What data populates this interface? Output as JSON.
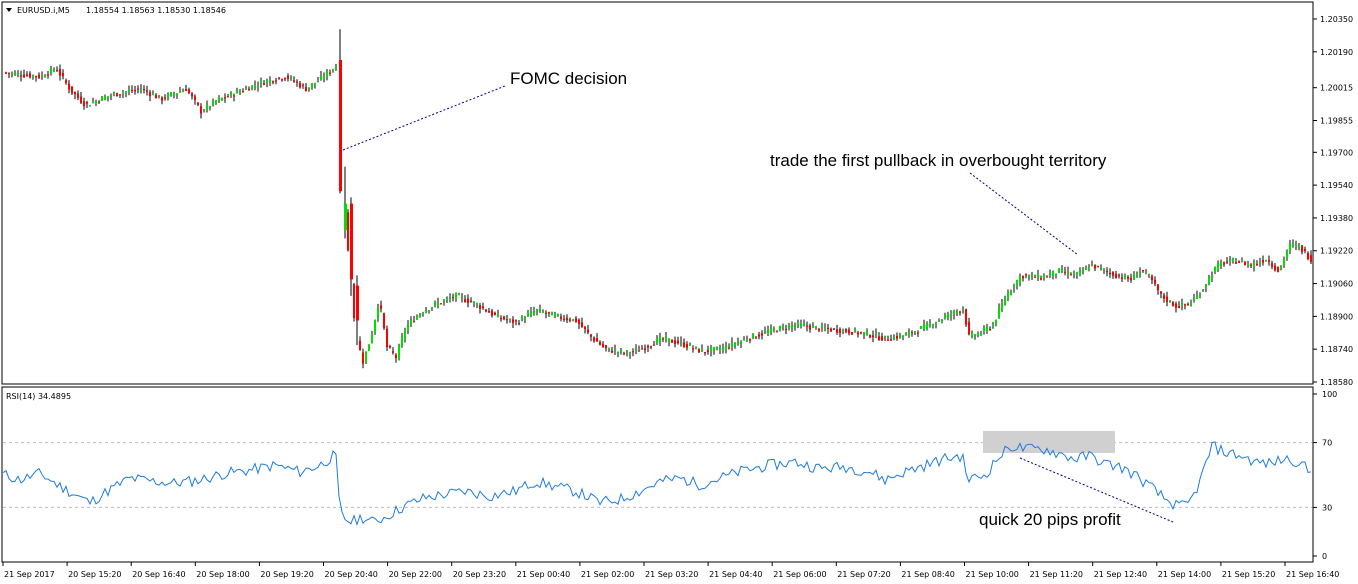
{
  "chart_data": [
    {
      "type": "candlestick",
      "header": {
        "symbol": "EURUSD.i,M5",
        "ohlc": "1.18554 1.18563 1.18530 1.18546"
      },
      "y_ticks": [
        "1.20350",
        "1.20190",
        "1.20015",
        "1.19855",
        "1.19700",
        "1.19540",
        "1.19380",
        "1.19220",
        "1.19060",
        "1.18900",
        "1.18740",
        "1.18580"
      ],
      "ylim": [
        1.1858,
        1.2035
      ],
      "colors": {
        "up": "#00e000",
        "down": "#ff0000",
        "wick": "#000000"
      },
      "price_path": [
        [
          0,
          1.2009
        ],
        [
          40,
          1.2007
        ],
        [
          55,
          1.2011
        ],
        [
          70,
          1.2
        ],
        [
          85,
          1.1993
        ],
        [
          110,
          1.1998
        ],
        [
          140,
          1.2001
        ],
        [
          160,
          1.1996
        ],
        [
          185,
          1.2001
        ],
        [
          200,
          1.199
        ],
        [
          215,
          1.1995
        ],
        [
          240,
          1.2
        ],
        [
          260,
          1.2004
        ],
        [
          285,
          1.2007
        ],
        [
          305,
          1.2001
        ],
        [
          320,
          1.2006
        ],
        [
          337,
          1.2013
        ],
        [
          338,
          1.1968
        ],
        [
          342,
          1.195
        ],
        [
          346,
          1.193
        ],
        [
          350,
          1.1905
        ],
        [
          355,
          1.188
        ],
        [
          362,
          1.1868
        ],
        [
          370,
          1.188
        ],
        [
          378,
          1.1898
        ],
        [
          386,
          1.1875
        ],
        [
          395,
          1.187
        ],
        [
          405,
          1.1885
        ],
        [
          420,
          1.1892
        ],
        [
          435,
          1.1896
        ],
        [
          455,
          1.19
        ],
        [
          475,
          1.1896
        ],
        [
          495,
          1.189
        ],
        [
          515,
          1.1887
        ],
        [
          535,
          1.1893
        ],
        [
          555,
          1.189
        ],
        [
          575,
          1.1888
        ],
        [
          590,
          1.188
        ],
        [
          605,
          1.1874
        ],
        [
          625,
          1.1872
        ],
        [
          640,
          1.1874
        ],
        [
          660,
          1.1879
        ],
        [
          680,
          1.1877
        ],
        [
          700,
          1.1873
        ],
        [
          720,
          1.1874
        ],
        [
          745,
          1.1879
        ],
        [
          770,
          1.1883
        ],
        [
          795,
          1.1886
        ],
        [
          820,
          1.1884
        ],
        [
          845,
          1.1883
        ],
        [
          870,
          1.1881
        ],
        [
          885,
          1.1879
        ],
        [
          905,
          1.1881
        ],
        [
          925,
          1.1885
        ],
        [
          945,
          1.189
        ],
        [
          962,
          1.1894
        ],
        [
          968,
          1.188
        ],
        [
          980,
          1.1882
        ],
        [
          992,
          1.1886
        ],
        [
          1005,
          1.19
        ],
        [
          1020,
          1.191
        ],
        [
          1040,
          1.1909
        ],
        [
          1058,
          1.1912
        ],
        [
          1075,
          1.191
        ],
        [
          1090,
          1.1915
        ],
        [
          1100,
          1.1913
        ],
        [
          1115,
          1.191
        ],
        [
          1130,
          1.1908
        ],
        [
          1140,
          1.1913
        ],
        [
          1150,
          1.1908
        ],
        [
          1160,
          1.19
        ],
        [
          1175,
          1.1895
        ],
        [
          1188,
          1.1896
        ],
        [
          1200,
          1.1902
        ],
        [
          1212,
          1.1912
        ],
        [
          1220,
          1.1916
        ],
        [
          1235,
          1.1917
        ],
        [
          1250,
          1.1915
        ],
        [
          1265,
          1.1918
        ],
        [
          1278,
          1.1912
        ],
        [
          1288,
          1.1925
        ],
        [
          1298,
          1.1924
        ],
        [
          1312,
          1.1917
        ]
      ],
      "special_candles": [
        {
          "x": 339,
          "open": 1.2015,
          "close": 1.1951,
          "high": 1.203,
          "low": 1.195
        },
        {
          "x": 344,
          "open": 1.1932,
          "close": 1.1945,
          "high": 1.1963,
          "low": 1.1928
        },
        {
          "x": 350,
          "open": 1.1945,
          "close": 1.1908,
          "high": 1.1948,
          "low": 1.19
        },
        {
          "x": 356,
          "open": 1.1905,
          "close": 1.1888,
          "high": 1.191,
          "low": 1.1876
        }
      ],
      "annotations": [
        "FOMC decision",
        "trade the first pullback in overbought territory"
      ]
    },
    {
      "type": "line",
      "header": {
        "label": "RSI(14) 34.4895"
      },
      "y_ticks": [
        "100",
        "70",
        "30",
        "0"
      ],
      "ylim": [
        0,
        100
      ],
      "levels": [
        70,
        30
      ],
      "line_color": "#1e7be0",
      "rsi_path": [
        [
          0,
          51
        ],
        [
          20,
          47
        ],
        [
          40,
          51
        ],
        [
          60,
          43
        ],
        [
          75,
          38
        ],
        [
          90,
          33
        ],
        [
          110,
          41
        ],
        [
          130,
          48
        ],
        [
          155,
          46
        ],
        [
          175,
          45
        ],
        [
          200,
          47
        ],
        [
          225,
          51
        ],
        [
          250,
          53
        ],
        [
          275,
          56
        ],
        [
          300,
          52
        ],
        [
          320,
          56
        ],
        [
          334,
          62
        ],
        [
          336,
          60
        ],
        [
          340,
          26
        ],
        [
          345,
          23
        ],
        [
          352,
          21
        ],
        [
          362,
          24
        ],
        [
          372,
          21
        ],
        [
          385,
          24
        ],
        [
          405,
          31
        ],
        [
          425,
          36
        ],
        [
          445,
          38
        ],
        [
          465,
          40
        ],
        [
          490,
          37
        ],
        [
          515,
          40
        ],
        [
          535,
          46
        ],
        [
          555,
          43
        ],
        [
          575,
          40
        ],
        [
          590,
          36
        ],
        [
          600,
          33
        ],
        [
          620,
          35
        ],
        [
          640,
          40
        ],
        [
          660,
          46
        ],
        [
          680,
          48
        ],
        [
          700,
          44
        ],
        [
          720,
          48
        ],
        [
          745,
          53
        ],
        [
          770,
          56
        ],
        [
          795,
          58
        ],
        [
          820,
          54
        ],
        [
          845,
          55
        ],
        [
          870,
          52
        ],
        [
          885,
          47
        ],
        [
          905,
          52
        ],
        [
          925,
          56
        ],
        [
          945,
          60
        ],
        [
          962,
          62
        ],
        [
          968,
          47
        ],
        [
          985,
          50
        ],
        [
          1000,
          62
        ],
        [
          1012,
          68
        ],
        [
          1025,
          66
        ],
        [
          1045,
          66
        ],
        [
          1060,
          63
        ],
        [
          1075,
          60
        ],
        [
          1090,
          62
        ],
        [
          1105,
          57
        ],
        [
          1120,
          55
        ],
        [
          1135,
          50
        ],
        [
          1150,
          43
        ],
        [
          1165,
          35
        ],
        [
          1180,
          30
        ],
        [
          1190,
          33
        ],
        [
          1200,
          46
        ],
        [
          1212,
          68
        ],
        [
          1225,
          64
        ],
        [
          1240,
          62
        ],
        [
          1255,
          58
        ],
        [
          1270,
          57
        ],
        [
          1285,
          60
        ],
        [
          1300,
          58
        ],
        [
          1312,
          50
        ]
      ],
      "annotations": [
        "quick 20 pips profit"
      ]
    }
  ],
  "x_ticks": [
    "21 Sep 2017",
    "20 Sep 15:20",
    "20 Sep 16:40",
    "20 Sep 18:00",
    "20 Sep 19:20",
    "20 Sep 20:40",
    "20 Sep 22:00",
    "20 Sep 23:20",
    "21 Sep 00:40",
    "21 Sep 02:00",
    "21 Sep 03:20",
    "21 Sep 04:40",
    "21 Sep 06:00",
    "21 Sep 07:20",
    "21 Sep 08:40",
    "21 Sep 10:00",
    "21 Sep 11:20",
    "21 Sep 12:40",
    "21 Sep 14:00",
    "21 Sep 15:20",
    "21 Sep 16:40"
  ]
}
